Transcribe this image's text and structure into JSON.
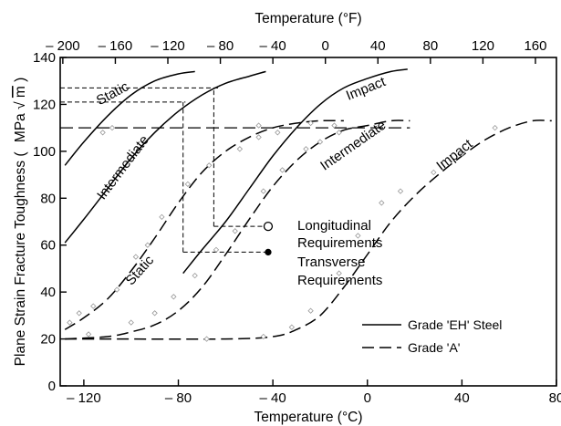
{
  "chart_data": {
    "type": "line",
    "title": "",
    "x_axis": {
      "label": "Temperature (°C)",
      "range": [
        -130,
        80
      ],
      "ticks": [
        -120,
        -80,
        -40,
        0,
        40,
        80
      ],
      "tick_labels": [
        "– 120",
        "– 80",
        "– 40",
        "0",
        "40",
        "80"
      ]
    },
    "x2_axis": {
      "label": "Temperature (°F)",
      "ticks": [
        -200,
        -160,
        -120,
        -80,
        -40,
        0,
        40,
        80,
        120,
        160
      ],
      "tick_labels": [
        "– 200",
        "– 160",
        "– 120",
        "– 80",
        "– 40",
        "0",
        "40",
        "80",
        "120",
        "160"
      ]
    },
    "y_axis": {
      "label": "Plane Strain Fracture Toughness (MPa√m)",
      "label_prefix": "Plane Strain Fracture Toughness (",
      "label_unit": "MPa",
      "label_root": "m",
      "label_suffix": ")",
      "range": [
        0,
        140
      ],
      "ticks": [
        0,
        20,
        40,
        60,
        80,
        100,
        120,
        140
      ],
      "tick_labels": [
        "0",
        "20",
        "40",
        "60",
        "80",
        "100",
        "120",
        "140"
      ]
    },
    "series": [
      {
        "name": "Static",
        "grade": "EH",
        "style": "solid",
        "points": [
          [
            -128,
            94
          ],
          [
            -120,
            104
          ],
          [
            -110,
            115
          ],
          [
            -100,
            124
          ],
          [
            -90,
            130
          ],
          [
            -80,
            133
          ],
          [
            -73,
            134
          ]
        ]
      },
      {
        "name": "Intermediate",
        "grade": "EH",
        "style": "solid",
        "points": [
          [
            -128,
            61
          ],
          [
            -120,
            71
          ],
          [
            -110,
            84
          ],
          [
            -100,
            97
          ],
          [
            -90,
            108
          ],
          [
            -80,
            117
          ],
          [
            -70,
            124
          ],
          [
            -60,
            129
          ],
          [
            -50,
            132
          ],
          [
            -43,
            134
          ]
        ]
      },
      {
        "name": "Impact",
        "grade": "EH",
        "style": "solid",
        "points": [
          [
            -78,
            48
          ],
          [
            -70,
            58
          ],
          [
            -60,
            70
          ],
          [
            -50,
            84
          ],
          [
            -40,
            98
          ],
          [
            -30,
            110
          ],
          [
            -20,
            120
          ],
          [
            -10,
            127
          ],
          [
            0,
            131
          ],
          [
            10,
            134
          ],
          [
            17,
            135
          ]
        ]
      },
      {
        "name": "Static",
        "grade": "A",
        "style": "dashed",
        "points": [
          [
            -128,
            24
          ],
          [
            -120,
            29
          ],
          [
            -110,
            37
          ],
          [
            -100,
            49
          ],
          [
            -90,
            63
          ],
          [
            -80,
            78
          ],
          [
            -70,
            91
          ],
          [
            -60,
            100
          ],
          [
            -50,
            106
          ],
          [
            -40,
            110
          ],
          [
            -30,
            112
          ],
          [
            -20,
            113
          ],
          [
            -10,
            113
          ]
        ]
      },
      {
        "name": "Intermediate",
        "grade": "A",
        "style": "dashed",
        "points": [
          [
            -128,
            20
          ],
          [
            -110,
            21
          ],
          [
            -100,
            23
          ],
          [
            -90,
            26
          ],
          [
            -80,
            32
          ],
          [
            -70,
            42
          ],
          [
            -60,
            56
          ],
          [
            -50,
            71
          ],
          [
            -40,
            85
          ],
          [
            -30,
            96
          ],
          [
            -20,
            104
          ],
          [
            -10,
            109
          ],
          [
            0,
            111
          ],
          [
            10,
            113
          ],
          [
            18,
            113
          ]
        ]
      },
      {
        "name": "Impact",
        "grade": "A",
        "style": "dashed",
        "points": [
          [
            -128,
            20
          ],
          [
            -110,
            20
          ],
          [
            -60,
            20
          ],
          [
            -40,
            21
          ],
          [
            -30,
            24
          ],
          [
            -20,
            30
          ],
          [
            -10,
            42
          ],
          [
            0,
            56
          ],
          [
            10,
            70
          ],
          [
            20,
            81
          ],
          [
            30,
            90
          ],
          [
            40,
            98
          ],
          [
            50,
            105
          ],
          [
            60,
            110
          ],
          [
            70,
            113
          ],
          [
            78,
            113
          ]
        ]
      }
    ],
    "reference_lines": {
      "horizontal": [
        {
          "y": 110,
          "x_from": -130,
          "x_to": 18
        },
        {
          "y": 127,
          "x_from": -130,
          "x_to": -63
        },
        {
          "y": 121,
          "x_from": -130,
          "x_to": -77
        }
      ],
      "vertical": [
        {
          "x": -65,
          "y_from": 68,
          "y_to": 127
        },
        {
          "x": -78,
          "y_from": 57,
          "y_to": 121
        }
      ],
      "leaders": [
        {
          "x_from": -65,
          "x_to": -42,
          "y": 68,
          "marker": "open-circle"
        },
        {
          "x_from": -78,
          "x_to": -42,
          "y": 57,
          "marker": "filled-circle"
        }
      ]
    },
    "scatter_points": [
      [
        -126,
        27
      ],
      [
        -122,
        31
      ],
      [
        -116,
        34
      ],
      [
        -106,
        41
      ],
      [
        -98,
        55
      ],
      [
        -93,
        60
      ],
      [
        -87,
        72
      ],
      [
        -76,
        86
      ],
      [
        -67,
        94
      ],
      [
        -54,
        101
      ],
      [
        -46,
        106
      ],
      [
        -38,
        108
      ],
      [
        -118,
        22
      ],
      [
        -100,
        27
      ],
      [
        -90,
        31
      ],
      [
        -82,
        38
      ],
      [
        -73,
        47
      ],
      [
        -64,
        58
      ],
      [
        -56,
        66
      ],
      [
        -44,
        83
      ],
      [
        -36,
        92
      ],
      [
        -26,
        101
      ],
      [
        -20,
        104
      ],
      [
        -12,
        108
      ],
      [
        -68,
        20
      ],
      [
        -44,
        21
      ],
      [
        -32,
        25
      ],
      [
        -24,
        32
      ],
      [
        -12,
        48
      ],
      [
        -4,
        64
      ],
      [
        6,
        78
      ],
      [
        14,
        83
      ],
      [
        28,
        91
      ],
      [
        40,
        99
      ],
      [
        54,
        110
      ],
      [
        -112,
        108
      ],
      [
        -108,
        110
      ],
      [
        -46,
        111
      ],
      [
        -24,
        112
      ],
      [
        -14,
        111
      ]
    ],
    "annotations": [
      {
        "text": "Static",
        "x": -107,
        "y": 123,
        "rotate": -28
      },
      {
        "text": "Intermediate",
        "x": -102,
        "y": 92,
        "rotate": -53
      },
      {
        "text": "Impact",
        "x": 0,
        "y": 125,
        "rotate": -22
      },
      {
        "text": "Static",
        "x": -95,
        "y": 48,
        "rotate": -48
      },
      {
        "text": "Intermediate",
        "x": -5,
        "y": 101,
        "rotate": -35
      },
      {
        "text": "Impact",
        "x": 38,
        "y": 97,
        "rotate": -38
      }
    ],
    "requirements": {
      "longitudinal": {
        "line1": "Longitudinal",
        "line2": "Requirements"
      },
      "transverse": {
        "line1": "Transverse",
        "line2": "Requirements"
      }
    },
    "legend": {
      "placement": "bottom-right",
      "entries": [
        {
          "label": "Grade 'EH' Steel",
          "style": "solid"
        },
        {
          "label": "Grade 'A'",
          "style": "dashed"
        }
      ]
    },
    "grid": false
  }
}
